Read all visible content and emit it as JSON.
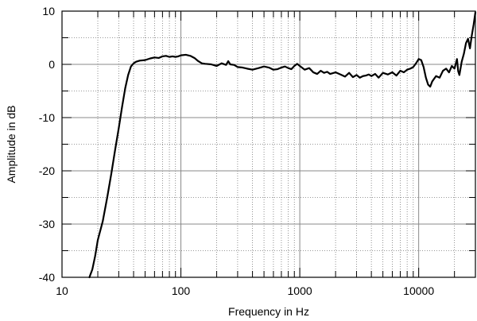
{
  "chart_data": {
    "type": "line",
    "xlabel": "Frequency in Hz",
    "ylabel": "Amplitude in dB",
    "xscale": "log",
    "xlim": [
      10,
      30000
    ],
    "ylim": [
      -40,
      10
    ],
    "grid": true,
    "x_ticks": [
      {
        "value": 10,
        "label": "10"
      },
      {
        "value": 100,
        "label": "100"
      },
      {
        "value": 1000,
        "label": "1000"
      },
      {
        "value": 10000,
        "label": "10000"
      }
    ],
    "y_ticks": [
      {
        "value": 10,
        "label": "10"
      },
      {
        "value": 0,
        "label": "0"
      },
      {
        "value": -10,
        "label": "-10"
      },
      {
        "value": -20,
        "label": "-20"
      },
      {
        "value": -30,
        "label": "-30"
      },
      {
        "value": -40,
        "label": "-40"
      }
    ],
    "series": [
      {
        "color": "#000000",
        "x": [
          17,
          18,
          19,
          20,
          22,
          24,
          26,
          28,
          30,
          32,
          34,
          36,
          38,
          40,
          42,
          45,
          50,
          55,
          60,
          65,
          70,
          75,
          80,
          85,
          90,
          95,
          100,
          110,
          120,
          130,
          140,
          150,
          160,
          180,
          200,
          220,
          240,
          250,
          260,
          280,
          300,
          330,
          360,
          400,
          450,
          500,
          550,
          600,
          650,
          700,
          750,
          800,
          850,
          900,
          950,
          1000,
          1100,
          1200,
          1300,
          1400,
          1500,
          1600,
          1700,
          1800,
          2000,
          2200,
          2400,
          2600,
          2800,
          3000,
          3200,
          3400,
          3600,
          3800,
          4000,
          4300,
          4600,
          5000,
          5500,
          6000,
          6500,
          7000,
          7500,
          8000,
          8500,
          9000,
          9500,
          10000,
          10500,
          11000,
          11500,
          12000,
          12500,
          13000,
          14000,
          15000,
          16000,
          17000,
          18000,
          19000,
          20000,
          21000,
          21500,
          22000,
          23000,
          24000,
          25000,
          26000,
          27000,
          28000,
          29000,
          30000
        ],
        "y": [
          -40,
          -38.5,
          -36,
          -33,
          -29.5,
          -25,
          -20.5,
          -16,
          -12,
          -8,
          -4.5,
          -2,
          -0.4,
          0.2,
          0.5,
          0.7,
          0.8,
          1.1,
          1.3,
          1.2,
          1.5,
          1.6,
          1.4,
          1.5,
          1.4,
          1.5,
          1.7,
          1.8,
          1.6,
          1.2,
          0.6,
          0.2,
          0.1,
          0,
          -0.3,
          0.2,
          -0.1,
          0.6,
          0,
          -0.1,
          -0.5,
          -0.6,
          -0.8,
          -1.0,
          -0.7,
          -0.4,
          -0.6,
          -1.0,
          -0.9,
          -0.6,
          -0.4,
          -0.7,
          -0.9,
          -0.3,
          0.1,
          -0.3,
          -1.0,
          -0.7,
          -1.5,
          -1.8,
          -1.2,
          -1.6,
          -1.4,
          -1.8,
          -1.5,
          -1.9,
          -2.3,
          -1.6,
          -2.4,
          -2.0,
          -2.5,
          -2.2,
          -2.1,
          -1.9,
          -2.2,
          -1.8,
          -2.5,
          -1.6,
          -1.9,
          -1.5,
          -2.1,
          -1.2,
          -1.5,
          -1.0,
          -0.8,
          -0.5,
          0.2,
          1.0,
          0.8,
          -0.5,
          -2.5,
          -3.8,
          -4.2,
          -3.2,
          -2.2,
          -2.5,
          -1.2,
          -0.8,
          -1.5,
          -0.3,
          -0.8,
          1.0,
          -1.3,
          -2.0,
          0.5,
          2.0,
          4.0,
          4.8,
          3.0,
          5.5,
          7.5,
          9.8
        ]
      }
    ]
  }
}
